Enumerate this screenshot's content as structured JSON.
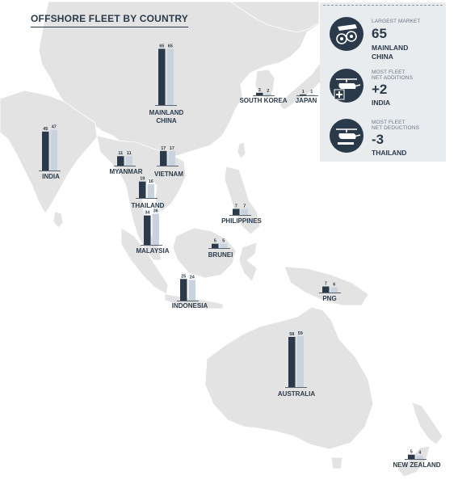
{
  "title": "OFFSHORE FLEET BY COUNTRY",
  "panel": {
    "largest": {
      "caption": "LARGEST MARKET",
      "value": "65",
      "line1": "MAINLAND",
      "line2": "CHINA",
      "icon": "helicopter-rotor-icon"
    },
    "additions": {
      "caption1": "MOST FLEET",
      "caption2": "NET ADDITIONS",
      "value": "+2",
      "line1": "INDIA",
      "icon": "helicopter-plus-icon"
    },
    "deductions": {
      "caption1": "MOST FLEET",
      "caption2": "NET DEDUCTIONS",
      "value": "-3",
      "line1": "THAILAND",
      "icon": "helicopter-minus-icon"
    }
  },
  "colors": {
    "bar_dark": "#2b3a4a",
    "bar_light": "#c9d3df",
    "land": "#e3e3e3",
    "panel": "#e9ecef"
  },
  "chart_data": {
    "type": "bar",
    "series": [
      {
        "color": "#2b3a4a"
      },
      {
        "color": "#c9d3df"
      }
    ],
    "countries": [
      {
        "name": "MAINLAND",
        "name2": "CHINA",
        "values": [
          65,
          65
        ]
      },
      {
        "name": "SOUTH KOREA",
        "values": [
          3,
          2
        ]
      },
      {
        "name": "JAPAN",
        "values": [
          1,
          1
        ]
      },
      {
        "name": "INDIA",
        "values": [
          45,
          47
        ]
      },
      {
        "name": "MYANMAR",
        "values": [
          11,
          11
        ]
      },
      {
        "name": "VIETNAM",
        "values": [
          17,
          17
        ]
      },
      {
        "name": "THAILAND",
        "values": [
          19,
          16
        ]
      },
      {
        "name": "PHILIPPINES",
        "values": [
          7,
          7
        ]
      },
      {
        "name": "MALAYSIA",
        "values": [
          34,
          36
        ]
      },
      {
        "name": "BRUNEI",
        "values": [
          5,
          5
        ]
      },
      {
        "name": "INDONESIA",
        "values": [
          25,
          24
        ]
      },
      {
        "name": "PNG",
        "values": [
          7,
          6
        ]
      },
      {
        "name": "AUSTRALIA",
        "values": [
          58,
          59
        ]
      },
      {
        "name": "NEW ZEALAND",
        "values": [
          5,
          4
        ]
      }
    ]
  }
}
